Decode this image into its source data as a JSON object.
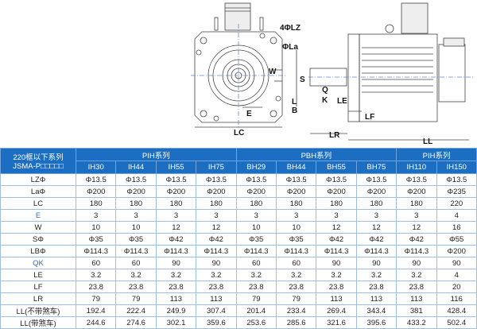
{
  "drawing": {
    "labels": {
      "lz": "4ΦLZ",
      "la": "ΦLa",
      "w": "W",
      "e": "E",
      "lc": "LC",
      "s": "S",
      "q": "Q",
      "k": "K",
      "l": "L",
      "b": "B",
      "le": "LE",
      "lf": "LF",
      "lr": "LR",
      "ll": "LL"
    }
  },
  "table": {
    "corner_line1": "220框以下系列",
    "corner_line2": "JSMA-P□□□□□",
    "groups": [
      {
        "label": "PIH系列",
        "span": 4
      },
      {
        "label": "PBH系列",
        "span": 4
      },
      {
        "label": "PIH系列",
        "span": 2
      }
    ],
    "models": [
      "IH30",
      "IH44",
      "IH55",
      "IH75",
      "BH29",
      "BH44",
      "BH55",
      "BH75",
      "IH110",
      "IH150"
    ],
    "rows": [
      {
        "label": "LZΦ",
        "values": [
          "Φ13.5",
          "Φ13.5",
          "Φ13.5",
          "Φ13.5",
          "Φ13.5",
          "Φ13.5",
          "Φ13.5",
          "Φ13.5",
          "Φ13.5",
          "Φ13.5"
        ]
      },
      {
        "label": "LaΦ",
        "values": [
          "Φ200",
          "Φ200",
          "Φ200",
          "Φ200",
          "Φ200",
          "Φ200",
          "Φ200",
          "Φ200",
          "Φ200",
          "Φ235"
        ]
      },
      {
        "label": "LC",
        "values": [
          "180",
          "180",
          "180",
          "180",
          "180",
          "180",
          "180",
          "180",
          "180",
          "220"
        ]
      },
      {
        "label": "E",
        "values": [
          "3",
          "3",
          "3",
          "3",
          "3",
          "3",
          "3",
          "3",
          "3",
          "4"
        ]
      },
      {
        "label": "W",
        "values": [
          "10",
          "10",
          "12",
          "12",
          "10",
          "10",
          "12",
          "12",
          "12",
          "16"
        ]
      },
      {
        "label": "SΦ",
        "values": [
          "Φ35",
          "Φ35",
          "Φ42",
          "Φ42",
          "Φ35",
          "Φ35",
          "Φ42",
          "Φ42",
          "Φ42",
          "Φ55"
        ]
      },
      {
        "label": "LBΦ",
        "values": [
          "Φ114.3",
          "Φ114.3",
          "Φ114.3",
          "Φ114.3",
          "Φ114.3",
          "Φ114.3",
          "Φ114.3",
          "Φ114.3",
          "Φ114.3",
          "Φ200"
        ]
      },
      {
        "label": "QK",
        "values": [
          "60",
          "60",
          "90",
          "90",
          "60",
          "60",
          "90",
          "90",
          "90",
          "90"
        ]
      },
      {
        "label": "LE",
        "values": [
          "3.2",
          "3.2",
          "3.2",
          "3.2",
          "3.2",
          "3.2",
          "3.2",
          "3.2",
          "3.2",
          "4"
        ]
      },
      {
        "label": "LF",
        "values": [
          "23.8",
          "23.8",
          "23.8",
          "23.8",
          "23.8",
          "23.8",
          "23.8",
          "23.8",
          "23.8",
          "20"
        ]
      },
      {
        "label": "LR",
        "values": [
          "79",
          "79",
          "113",
          "113",
          "79",
          "79",
          "113",
          "113",
          "113",
          "116"
        ]
      },
      {
        "label": "LL(不带煞车)",
        "values": [
          "192.4",
          "222.4",
          "249.9",
          "307.4",
          "201.4",
          "233.4",
          "269.4",
          "343.4",
          "381",
          "428.4"
        ]
      },
      {
        "label": "LL(带煞车)",
        "values": [
          "244.6",
          "274.6",
          "302.1",
          "359.6",
          "253.6",
          "285.6",
          "321.6",
          "395.6",
          "433.2",
          "502.4"
        ]
      }
    ]
  }
}
